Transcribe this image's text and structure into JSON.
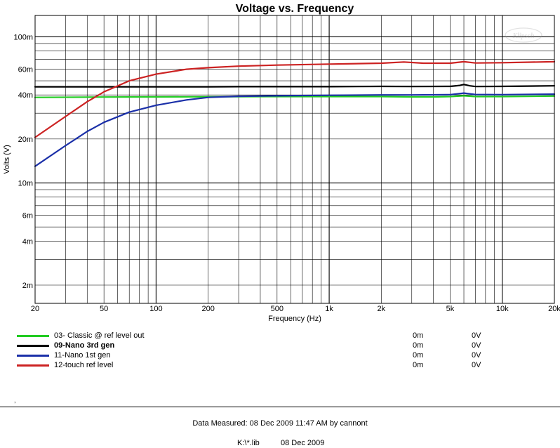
{
  "chart_data": {
    "type": "line",
    "title": "Voltage vs. Frequency",
    "xlabel": "Frequency (Hz)",
    "ylabel": "Volts (V)",
    "x_scale": "log",
    "y_scale": "log",
    "xlim": [
      20,
      20000
    ],
    "ylim": [
      0.0015,
      0.14
    ],
    "grid": true,
    "watermark": "Klipsch",
    "x_ticks": [
      {
        "value": 20,
        "label": "20"
      },
      {
        "value": 50,
        "label": "50"
      },
      {
        "value": 100,
        "label": "100"
      },
      {
        "value": 200,
        "label": "200"
      },
      {
        "value": 500,
        "label": "500"
      },
      {
        "value": 1000,
        "label": "1k"
      },
      {
        "value": 2000,
        "label": "2k"
      },
      {
        "value": 5000,
        "label": "5k"
      },
      {
        "value": 10000,
        "label": "10k"
      },
      {
        "value": 20000,
        "label": "20k"
      }
    ],
    "y_ticks": [
      {
        "value": 0.002,
        "label": "2m"
      },
      {
        "value": 0.004,
        "label": "4m"
      },
      {
        "value": 0.006,
        "label": "6m"
      },
      {
        "value": 0.01,
        "label": "10m"
      },
      {
        "value": 0.02,
        "label": "20m"
      },
      {
        "value": 0.04,
        "label": "40m"
      },
      {
        "value": 0.06,
        "label": "60m"
      },
      {
        "value": 0.1,
        "label": "100m"
      }
    ],
    "series": [
      {
        "name": "03- Classic @ ref level out",
        "color": "#22cc22",
        "bold": false,
        "value1": "0m",
        "value2": "0V",
        "points": [
          [
            20,
            0.0385
          ],
          [
            50,
            0.0387
          ],
          [
            100,
            0.0388
          ],
          [
            200,
            0.0389
          ],
          [
            500,
            0.039
          ],
          [
            1000,
            0.039
          ],
          [
            2000,
            0.039
          ],
          [
            3000,
            0.0388
          ],
          [
            4000,
            0.0388
          ],
          [
            5000,
            0.039
          ],
          [
            6000,
            0.0395
          ],
          [
            7000,
            0.039
          ],
          [
            10000,
            0.039
          ],
          [
            20000,
            0.0393
          ]
        ]
      },
      {
        "name": "09-Nano 3rd gen",
        "color": "#000000",
        "bold": true,
        "value1": "0m",
        "value2": "0V",
        "points": [
          [
            20,
            0.0455
          ],
          [
            100,
            0.0455
          ],
          [
            200,
            0.0455
          ],
          [
            300,
            0.0456
          ],
          [
            500,
            0.0456
          ],
          [
            1000,
            0.0456
          ],
          [
            2000,
            0.0458
          ],
          [
            3000,
            0.0457
          ],
          [
            5000,
            0.0458
          ],
          [
            5700,
            0.0465
          ],
          [
            6000,
            0.0472
          ],
          [
            6500,
            0.0462
          ],
          [
            7000,
            0.0457
          ],
          [
            10000,
            0.0458
          ],
          [
            20000,
            0.0462
          ]
        ]
      },
      {
        "name": "11-Nano 1st gen",
        "color": "#1a2fa8",
        "bold": false,
        "value1": "0m",
        "value2": "0V",
        "points": [
          [
            20,
            0.013
          ],
          [
            30,
            0.018
          ],
          [
            40,
            0.0225
          ],
          [
            50,
            0.026
          ],
          [
            70,
            0.0305
          ],
          [
            100,
            0.034
          ],
          [
            150,
            0.037
          ],
          [
            200,
            0.0385
          ],
          [
            300,
            0.0392
          ],
          [
            500,
            0.0395
          ],
          [
            1000,
            0.0398
          ],
          [
            2000,
            0.04
          ],
          [
            3000,
            0.04
          ],
          [
            5000,
            0.0402
          ],
          [
            6000,
            0.0412
          ],
          [
            7000,
            0.0403
          ],
          [
            10000,
            0.0402
          ],
          [
            20000,
            0.0405
          ]
        ]
      },
      {
        "name": "12-touch ref level",
        "color": "#cc2222",
        "bold": false,
        "value1": "0m",
        "value2": "0V",
        "points": [
          [
            20,
            0.0205
          ],
          [
            30,
            0.0285
          ],
          [
            40,
            0.036
          ],
          [
            50,
            0.042
          ],
          [
            70,
            0.05
          ],
          [
            100,
            0.0555
          ],
          [
            150,
            0.06
          ],
          [
            200,
            0.0615
          ],
          [
            300,
            0.063
          ],
          [
            500,
            0.064
          ],
          [
            1000,
            0.065
          ],
          [
            2000,
            0.066
          ],
          [
            2700,
            0.0672
          ],
          [
            3500,
            0.066
          ],
          [
            5000,
            0.066
          ],
          [
            6000,
            0.0675
          ],
          [
            7000,
            0.0662
          ],
          [
            10000,
            0.0665
          ],
          [
            20000,
            0.0675
          ]
        ]
      }
    ]
  },
  "footer": {
    "measured": "Data Measured: 08 Dec 2009 11:47 AM by cannont",
    "lib": "K:\\*.lib",
    "date": "08 Dec 2009"
  }
}
